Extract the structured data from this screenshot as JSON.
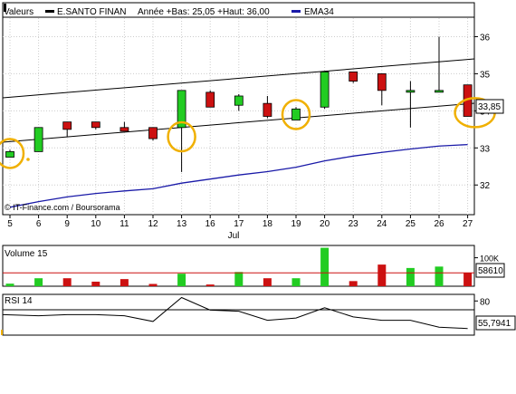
{
  "legend": {
    "valeurs": "Valeurs",
    "stock": "E.SANTO FINAN",
    "stats": "Année +Bas: 25,05 +Haut: 36,00",
    "ema": "EMA34"
  },
  "copyright": "© IT-Finance.com / Boursorama",
  "month_label": "Jul",
  "colors": {
    "up": "#22cc22",
    "down": "#cc1111",
    "ema": "#1a1aa8",
    "highlight": "#f0b000",
    "volume_avg": "#cc1111"
  },
  "chart_data": [
    {
      "type": "candlestick",
      "title": "E.SANTO FINAN",
      "dates": [
        "5",
        "6",
        "9",
        "10",
        "11",
        "12",
        "13",
        "16",
        "17",
        "18",
        "19",
        "20",
        "23",
        "24",
        "25",
        "26",
        "27"
      ],
      "ohlc": [
        [
          32.75,
          32.95,
          32.75,
          32.9
        ],
        [
          32.9,
          33.55,
          32.9,
          33.55
        ],
        [
          33.7,
          33.7,
          33.3,
          33.5
        ],
        [
          33.7,
          33.7,
          33.5,
          33.55
        ],
        [
          33.55,
          33.7,
          33.45,
          33.45
        ],
        [
          33.55,
          33.55,
          33.2,
          33.25
        ],
        [
          33.55,
          34.55,
          32.35,
          34.55
        ],
        [
          34.5,
          34.55,
          34.1,
          34.1
        ],
        [
          34.15,
          34.45,
          34.0,
          34.4
        ],
        [
          34.2,
          34.4,
          33.8,
          33.85
        ],
        [
          33.75,
          34.1,
          33.75,
          34.05
        ],
        [
          34.1,
          35.05,
          34.05,
          35.05
        ],
        [
          35.05,
          35.05,
          34.75,
          34.8
        ],
        [
          35.0,
          35.0,
          34.15,
          34.55
        ],
        [
          34.55,
          34.8,
          33.55,
          34.55
        ],
        [
          34.55,
          36.0,
          34.5,
          34.55
        ],
        [
          34.7,
          34.7,
          33.85,
          33.85
        ]
      ],
      "ema34": [
        31.4,
        31.55,
        31.68,
        31.77,
        31.84,
        31.9,
        32.05,
        32.16,
        32.27,
        32.36,
        32.48,
        32.65,
        32.78,
        32.88,
        32.97,
        33.05,
        33.09
      ],
      "y_ticks": [
        "32",
        "33",
        "34",
        "35",
        "36"
      ],
      "ylim": [
        31.2,
        36.5
      ],
      "last_label": "33,85",
      "grid": true
    },
    {
      "type": "bar",
      "title": "Volume 15",
      "volumes": [
        9000,
        28000,
        28000,
        16000,
        25000,
        8000,
        44000,
        6000,
        50000,
        28000,
        28000,
        135000,
        18000,
        76000,
        64000,
        69000,
        47000
      ],
      "avg_volume": [
        47000,
        47000,
        47000,
        47000,
        47000,
        47000,
        47000,
        47000,
        47000,
        47000,
        47000,
        47000,
        47000,
        47000,
        47000,
        47000,
        47000
      ],
      "y_ticks": [
        "100K"
      ],
      "ylim": [
        0,
        140000
      ],
      "last_label": "58610"
    },
    {
      "type": "line",
      "title": "RSI 14",
      "values": [
        68,
        67,
        68,
        68,
        67,
        62,
        83,
        72,
        71,
        63,
        65,
        74,
        66,
        63,
        63,
        57,
        55.79
      ],
      "y_ticks": [
        "80"
      ],
      "ylim": [
        50,
        85
      ],
      "last_label": "55,7941"
    }
  ]
}
